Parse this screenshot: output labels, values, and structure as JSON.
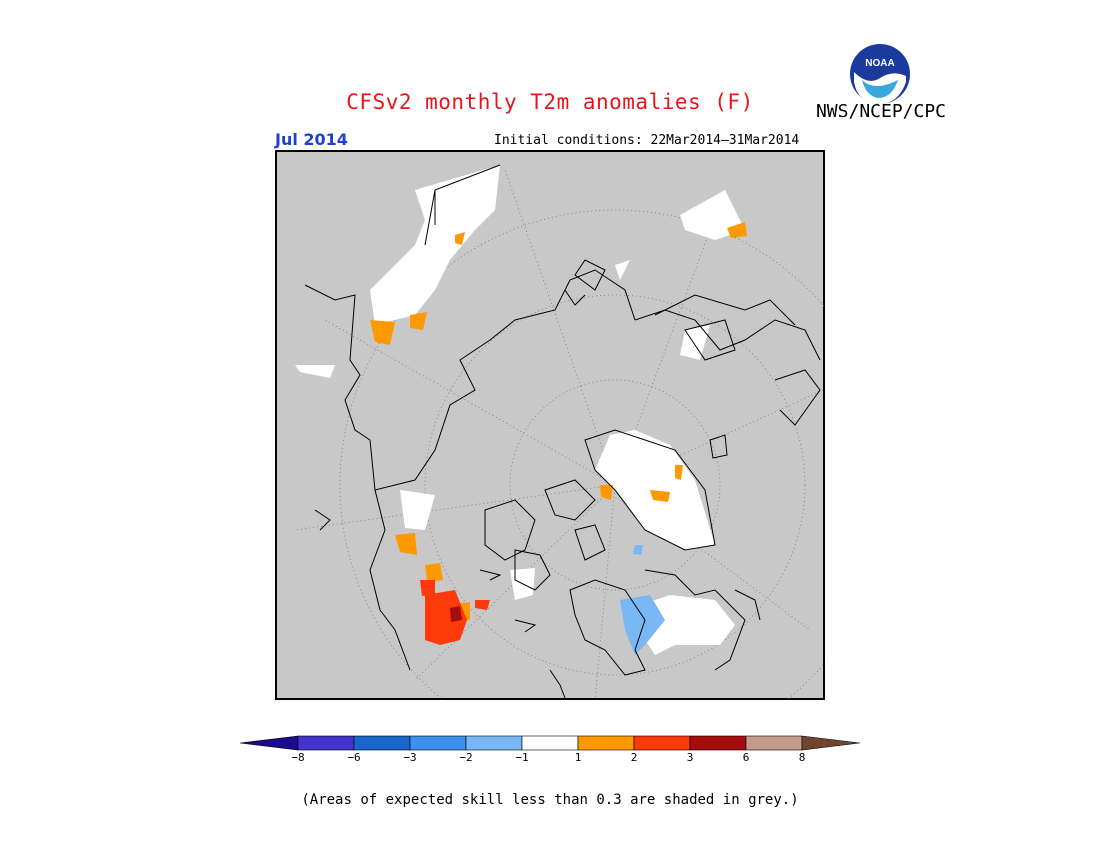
{
  "title": "CFSv2 monthly T2m anomalies (F)",
  "agency": "NWS/NCEP/CPC",
  "logo_text": "NOAA",
  "target_month": "Jul 2014",
  "initial_conditions": "Initial conditions: 22Mar2014–31Mar2014",
  "colors": {
    "title": "#e8141a",
    "month": "#1f3fcf",
    "skill_mask_grey": "#c8c8c8",
    "land_outline": "#000000"
  },
  "legend": {
    "bins": [
      {
        "color": "#1a0c8c"
      },
      {
        "color": "#4433cc"
      },
      {
        "color": "#1a66cc"
      },
      {
        "color": "#3d8ff0"
      },
      {
        "color": "#7ab8f5"
      },
      {
        "color": "#ffffff"
      },
      {
        "color": "#ff9900"
      },
      {
        "color": "#ff3a0a"
      },
      {
        "color": "#a50e0e"
      },
      {
        "color": "#c39a8c"
      },
      {
        "color": "#70442e"
      }
    ],
    "ticks": [
      "−8",
      "−6",
      "−3",
      "−2",
      "−1",
      "1",
      "2",
      "3",
      "6",
      "8"
    ]
  },
  "note": "(Areas of expected skill less than 0.3 are shaded in grey.)"
}
